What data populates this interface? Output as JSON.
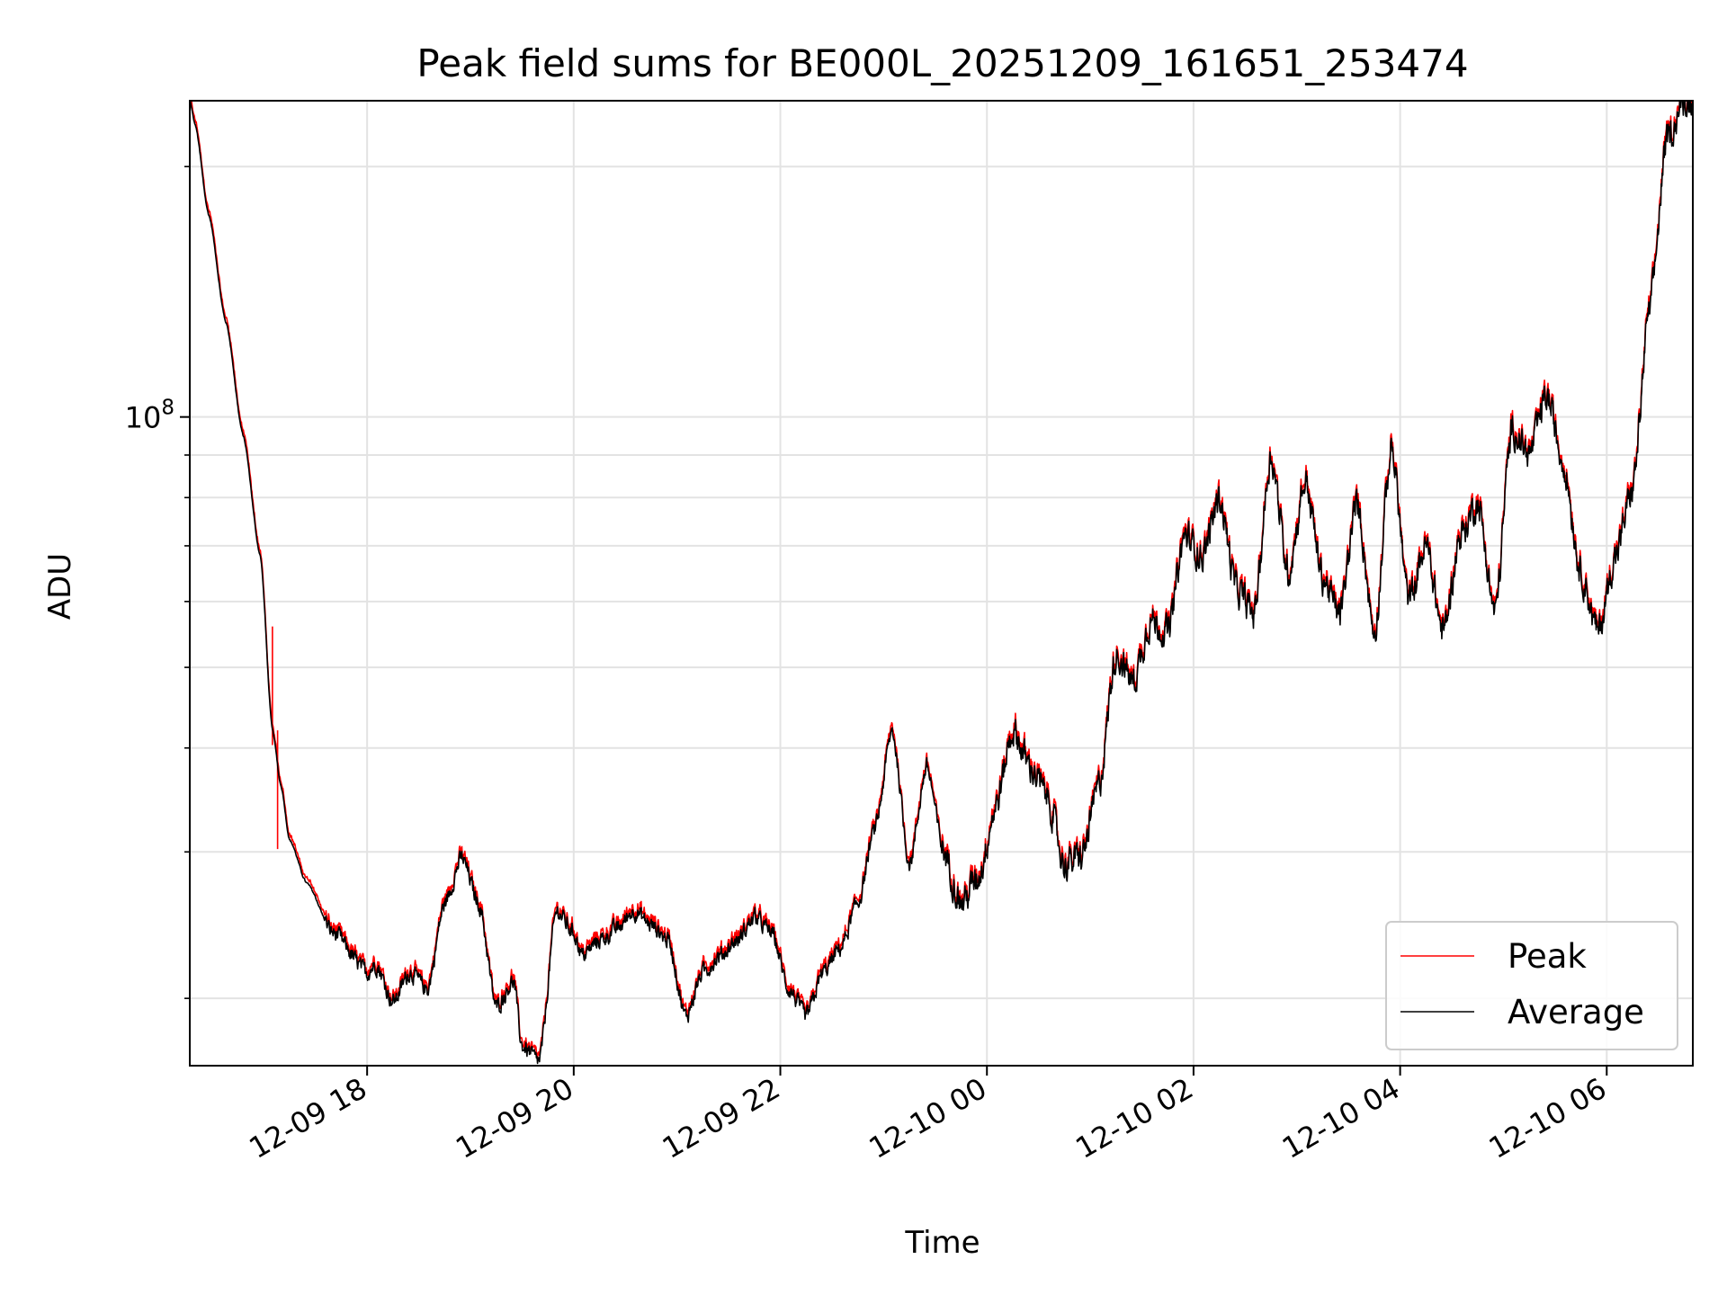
{
  "chart_data": {
    "type": "line",
    "title": "Peak field sums for BE000L_20251209_161651_253474",
    "xlabel": "Time",
    "ylabel": "ADU",
    "yscale": "log",
    "grid": true,
    "legend_position": "lower-right",
    "xlim": [
      "2025-12-09 16:17",
      "2025-12-10 06:50"
    ],
    "ylim": [
      16600000,
      240000000
    ],
    "x_ticks": [
      "2025-12-09 18:00",
      "2025-12-09 20:00",
      "2025-12-09 22:00",
      "2025-12-10 00:00",
      "2025-12-10 02:00",
      "2025-12-10 04:00",
      "2025-12-10 06:00"
    ],
    "x_tick_labels": [
      "12-09 18",
      "12-09 20",
      "12-09 22",
      "12-10 00",
      "12-10 02",
      "12-10 04",
      "12-10 06"
    ],
    "y_major_ticks": [
      100000000
    ],
    "y_major_tick_labels": [
      "10",
      "8"
    ],
    "y_minor_ticks": [
      20000000,
      30000000,
      40000000,
      50000000,
      60000000,
      70000000,
      80000000,
      90000000,
      200000000
    ],
    "series": [
      {
        "name": "Peak",
        "color": "#ff0000",
        "spikes": [
          {
            "x": "2025-12-09 17:05",
            "y": 56000000
          },
          {
            "x": "2025-12-09 17:08",
            "y": 42000000
          }
        ],
        "values": "same as Average with small upward offsets"
      },
      {
        "name": "Average",
        "color": "#000000",
        "x": [
          "2025-12-09 16:17",
          "2025-12-09 16:20",
          "2025-12-09 16:28",
          "2025-12-09 16:38",
          "2025-12-09 16:48",
          "2025-12-09 16:58",
          "2025-12-09 17:05",
          "2025-12-09 17:10",
          "2025-12-09 17:15",
          "2025-12-09 17:25",
          "2025-12-09 17:40",
          "2025-12-09 18:00",
          "2025-12-09 18:05",
          "2025-12-09 18:15",
          "2025-12-09 18:25",
          "2025-12-09 18:35",
          "2025-12-09 18:45",
          "2025-12-09 18:55",
          "2025-12-09 19:05",
          "2025-12-09 19:15",
          "2025-12-09 19:25",
          "2025-12-09 19:30",
          "2025-12-09 19:40",
          "2025-12-09 19:50",
          "2025-12-09 20:00",
          "2025-12-09 20:05",
          "2025-12-09 20:15",
          "2025-12-09 20:25",
          "2025-12-09 20:35",
          "2025-12-09 20:45",
          "2025-12-09 20:55",
          "2025-12-09 21:05",
          "2025-12-09 21:15",
          "2025-12-09 21:25",
          "2025-12-09 21:35",
          "2025-12-09 21:45",
          "2025-12-09 21:55",
          "2025-12-09 22:05",
          "2025-12-09 22:15",
          "2025-12-09 22:25",
          "2025-12-09 22:35",
          "2025-12-09 22:45",
          "2025-12-09 22:55",
          "2025-12-09 23:05",
          "2025-12-09 23:15",
          "2025-12-09 23:25",
          "2025-12-09 23:35",
          "2025-12-09 23:45",
          "2025-12-09 23:55",
          "2025-12-10 00:05",
          "2025-12-10 00:15",
          "2025-12-10 00:25",
          "2025-12-10 00:35",
          "2025-12-10 00:45",
          "2025-12-10 00:55",
          "2025-12-10 01:05",
          "2025-12-10 01:15",
          "2025-12-10 01:25",
          "2025-12-10 01:35",
          "2025-12-10 01:45",
          "2025-12-10 01:55",
          "2025-12-10 02:05",
          "2025-12-10 02:15",
          "2025-12-10 02:25",
          "2025-12-10 02:35",
          "2025-12-10 02:45",
          "2025-12-10 02:55",
          "2025-12-10 03:05",
          "2025-12-10 03:15",
          "2025-12-10 03:25",
          "2025-12-10 03:35",
          "2025-12-10 03:45",
          "2025-12-10 03:55",
          "2025-12-10 04:05",
          "2025-12-10 04:15",
          "2025-12-10 04:25",
          "2025-12-10 04:35",
          "2025-12-10 04:45",
          "2025-12-10 04:55",
          "2025-12-10 05:05",
          "2025-12-10 05:15",
          "2025-12-10 05:25",
          "2025-12-10 05:35",
          "2025-12-10 05:45",
          "2025-12-10 05:55",
          "2025-12-10 06:05",
          "2025-12-10 06:15",
          "2025-12-10 06:25",
          "2025-12-10 06:35",
          "2025-12-10 06:45",
          "2025-12-10 06:50"
        ],
        "y": [
          240000000,
          225000000,
          175000000,
          130000000,
          95000000,
          68000000,
          42000000,
          36000000,
          31000000,
          27500000,
          24000000,
          21500000,
          22000000,
          19800000,
          21500000,
          20500000,
          26000000,
          29500000,
          26000000,
          19500000,
          21000000,
          17500000,
          16800000,
          25500000,
          24000000,
          22500000,
          23500000,
          24200000,
          25500000,
          24500000,
          23500000,
          19000000,
          21500000,
          22500000,
          23500000,
          25000000,
          24000000,
          20500000,
          19000000,
          21500000,
          23000000,
          26000000,
          32000000,
          42000000,
          29000000,
          38000000,
          30000000,
          26000000,
          28000000,
          34000000,
          42000000,
          38000000,
          35000000,
          29000000,
          29500000,
          36000000,
          52000000,
          48000000,
          57000000,
          55000000,
          72000000,
          68000000,
          80000000,
          62000000,
          58000000,
          90000000,
          65000000,
          84000000,
          64000000,
          58000000,
          79000000,
          55000000,
          92000000,
          60000000,
          70000000,
          55000000,
          72000000,
          79000000,
          58000000,
          97000000,
          90000000,
          106000000,
          88000000,
          65000000,
          55000000,
          68000000,
          82000000,
          135000000,
          215000000,
          240000000,
          240000000
        ]
      }
    ]
  }
}
